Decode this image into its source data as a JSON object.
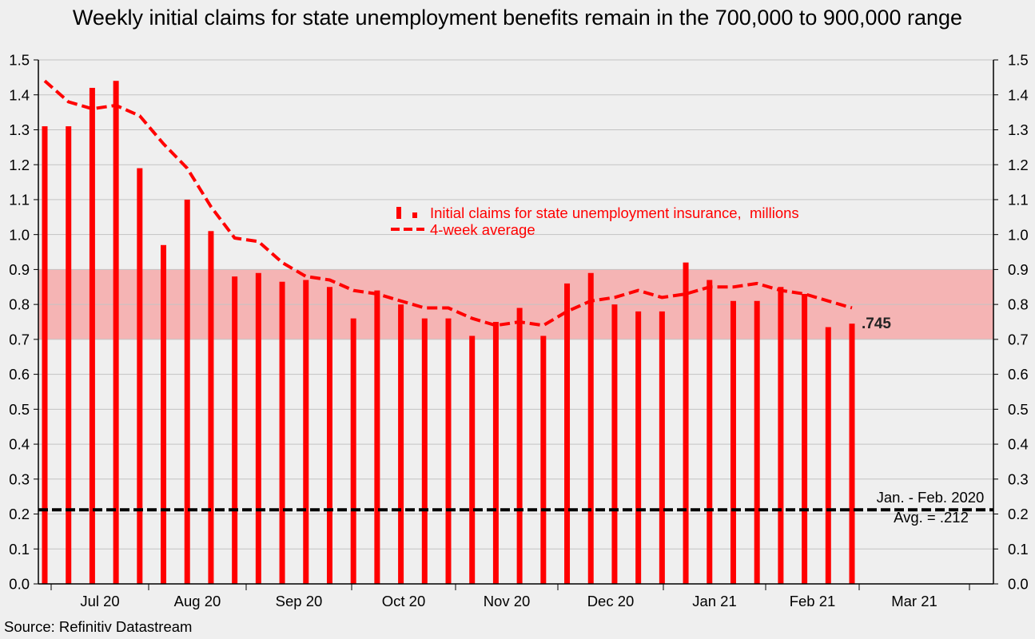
{
  "chart_data": {
    "type": "bar",
    "title": "Weekly initial claims for state unemployment benefits remain in the 700,000 to 900,000 range",
    "ylim": [
      0,
      1.5
    ],
    "grid": true,
    "x_tick_labels": [
      "Jul 20",
      "Aug 20",
      "Sep 20",
      "Oct 20",
      "Nov 20",
      "Dec 20",
      "Jan 21",
      "Feb 21",
      "Mar 21"
    ],
    "y_tick_labels": [
      "0.0",
      "0.1",
      "0.2",
      "0.3",
      "0.4",
      "0.5",
      "0.6",
      "0.7",
      "0.8",
      "0.9",
      "1.0",
      "1.1",
      "1.2",
      "1.3",
      "1.4",
      "1.5"
    ],
    "series": [
      {
        "name": "Initial claims for state unemployment insurance,  millions",
        "color": "#ff0000",
        "values": [
          1.31,
          1.31,
          1.42,
          1.44,
          1.19,
          0.97,
          1.1,
          1.01,
          0.88,
          0.89,
          0.865,
          0.87,
          0.85,
          0.76,
          0.84,
          0.8,
          0.76,
          0.76,
          0.71,
          0.75,
          0.79,
          0.71,
          0.86,
          0.89,
          0.8,
          0.78,
          0.78,
          0.92,
          0.87,
          0.81,
          0.81,
          0.85,
          0.83,
          0.735,
          0.745
        ]
      },
      {
        "name": "4-week average",
        "color": "#ff0000",
        "values": [
          1.44,
          1.38,
          1.36,
          1.37,
          1.34,
          1.26,
          1.19,
          1.08,
          0.99,
          0.98,
          0.92,
          0.88,
          0.87,
          0.84,
          0.83,
          0.81,
          0.79,
          0.79,
          0.76,
          0.74,
          0.75,
          0.74,
          0.78,
          0.81,
          0.82,
          0.84,
          0.82,
          0.83,
          0.85,
          0.85,
          0.86,
          0.84,
          0.83,
          0.81,
          0.79
        ]
      }
    ],
    "shaded_range": {
      "from": 0.7,
      "to": 0.9,
      "color": "#f5b4b4"
    },
    "reference_line": {
      "value": 0.212,
      "color": "#000000",
      "label_line1": "Jan. - Feb. 2020",
      "label_line2": "Avg. = .212"
    },
    "last_value_label": ".745"
  },
  "source": "Source: Refinitiv Datastream",
  "colors": {
    "background": "#efefef",
    "grid": "#c3c3c3",
    "axis": "#000000"
  }
}
